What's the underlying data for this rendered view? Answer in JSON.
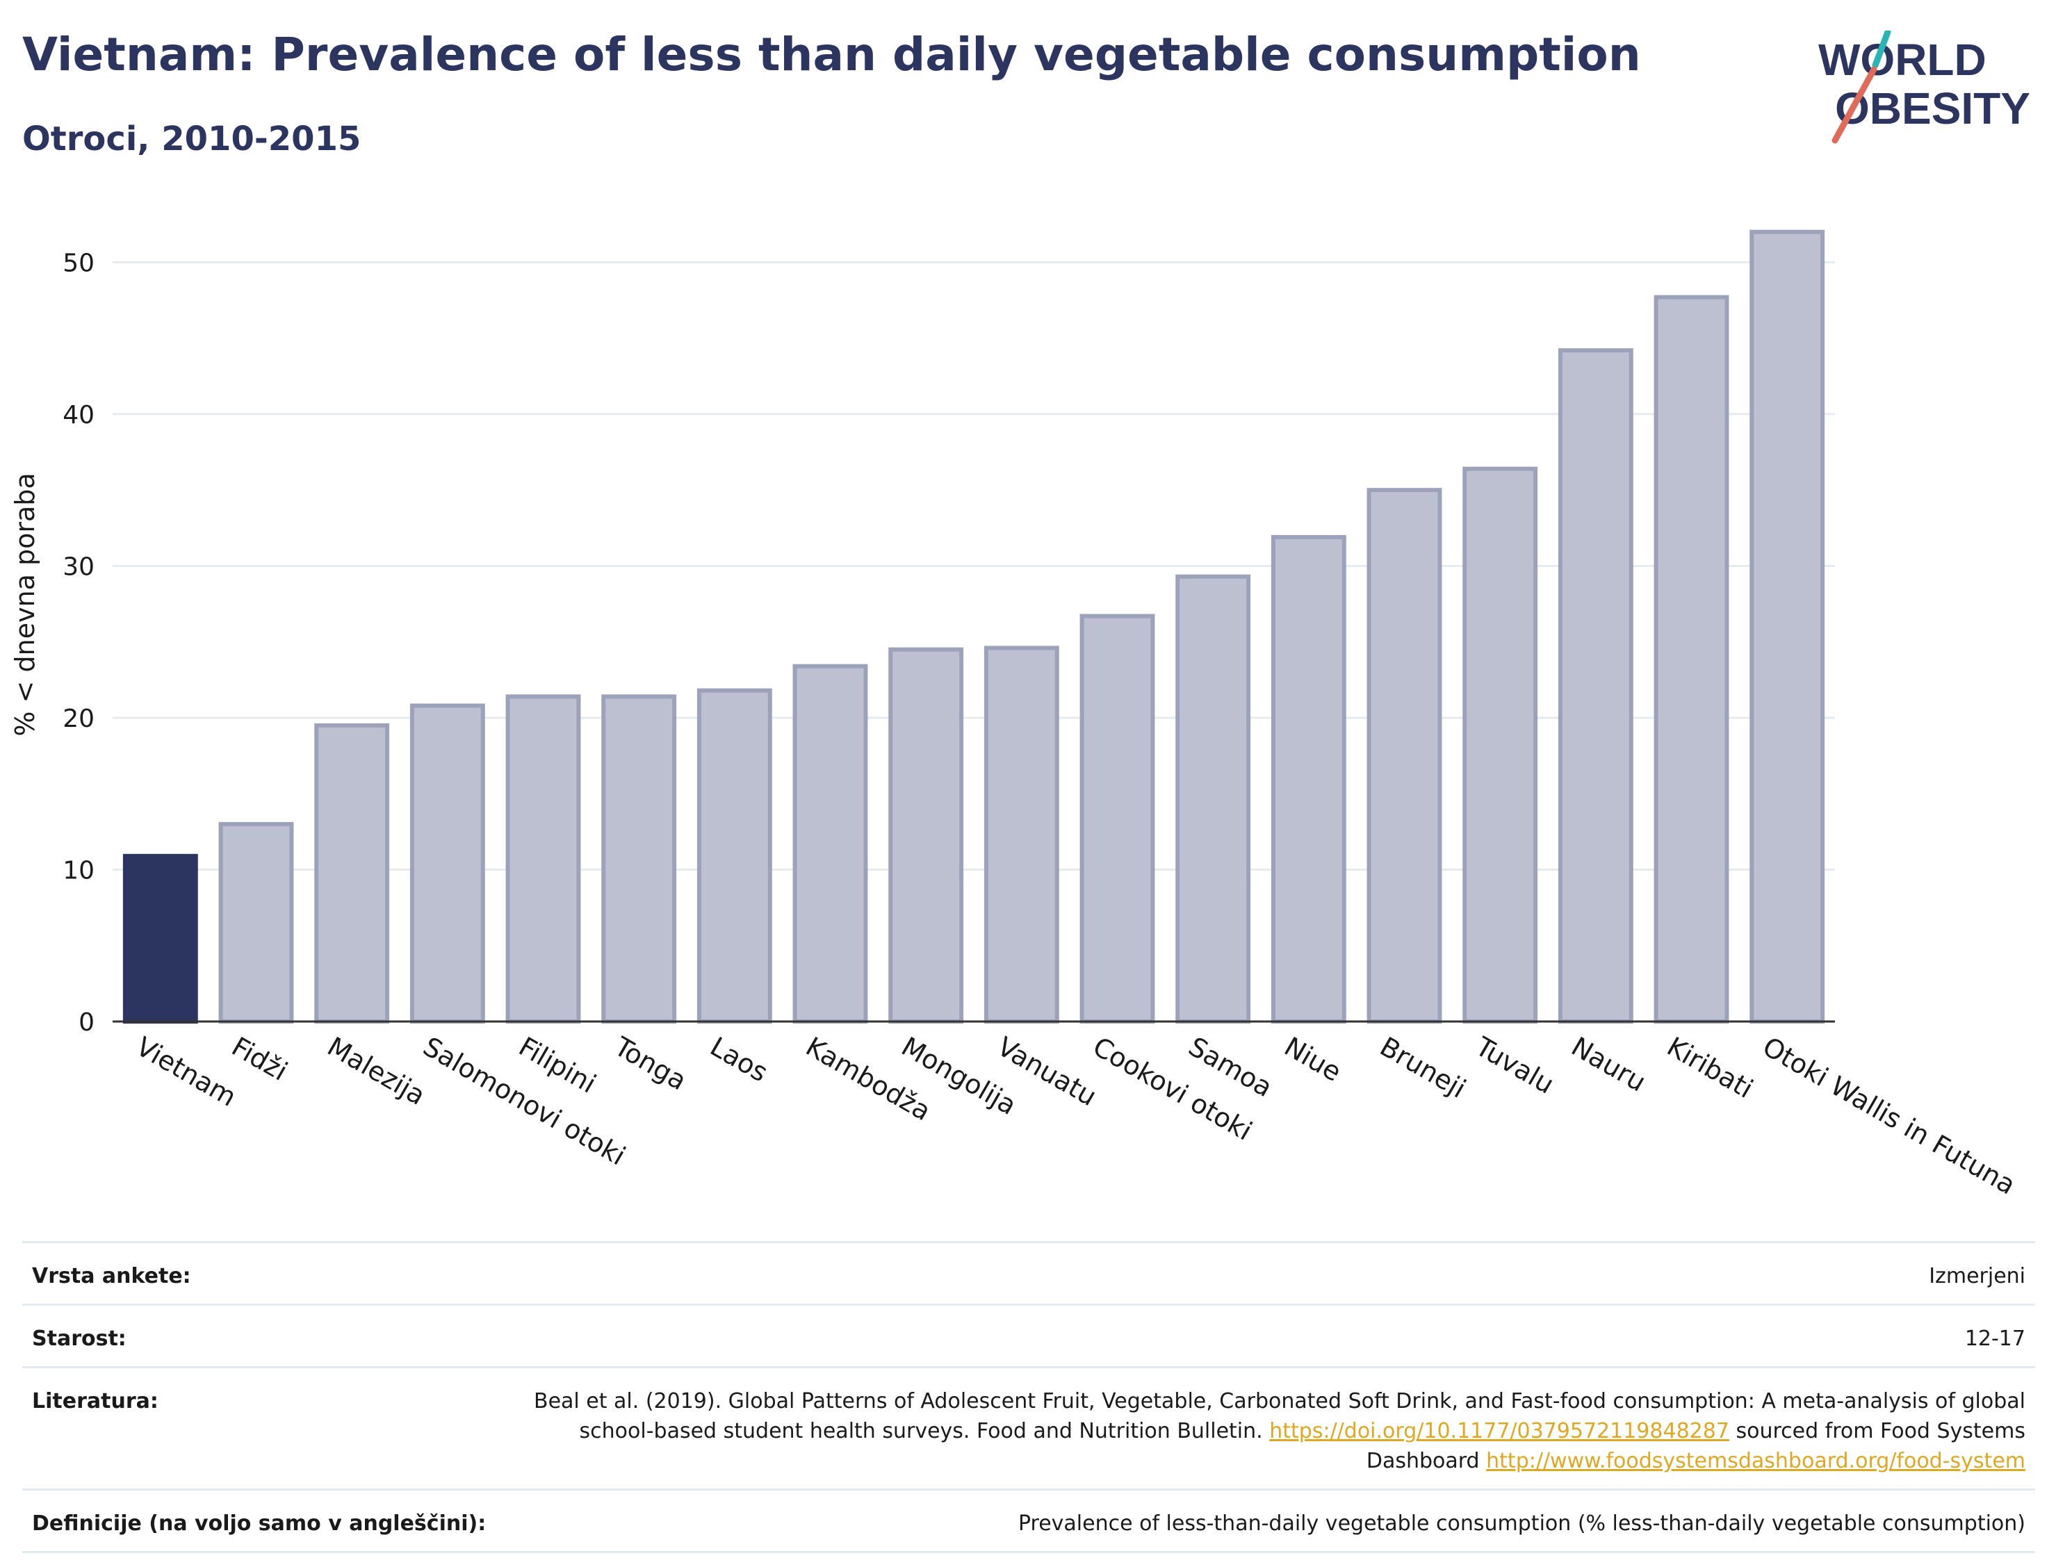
{
  "header": {
    "title": "Vietnam: Prevalence of less than daily vegetable consumption",
    "subtitle": "Otroci, 2010-2015",
    "logo_line1": "WORLD",
    "logo_line2": "OBESITY"
  },
  "chart_data": {
    "type": "bar",
    "title": "Vietnam: Prevalence of less than daily vegetable consumption",
    "subtitle": "Otroci, 2010-2015",
    "ylabel": "% < dnevna poraba",
    "xlabel": "",
    "ylim": [
      0,
      54
    ],
    "yticks": [
      0,
      10,
      20,
      30,
      40,
      50
    ],
    "grid": true,
    "highlight_category": "Vietnam",
    "colors": {
      "highlight": "#2b3560",
      "bar": "#bcc0d0",
      "bar_edge": "#9da2bb",
      "grid": "#e6ebf0"
    },
    "categories": [
      "Vietnam",
      "Fidži",
      "Malezija",
      "Salomonovi otoki",
      "Filipini",
      "Tonga",
      "Laos",
      "Kambodža",
      "Mongolija",
      "Vanuatu",
      "Cookovi otoki",
      "Samoa",
      "Niue",
      "Bruneji",
      "Tuvalu",
      "Nauru",
      "Kiribati",
      "Otoki Wallis in Futuna"
    ],
    "values": [
      10.9,
      13.0,
      19.5,
      20.8,
      21.4,
      21.4,
      21.8,
      23.4,
      24.5,
      24.6,
      26.7,
      29.3,
      31.9,
      35.0,
      36.4,
      44.2,
      47.7,
      52.0
    ]
  },
  "meta": {
    "survey_label": "Vrsta ankete:",
    "survey_value": "Izmerjeni",
    "age_label": "Starost:",
    "age_value": "12-17",
    "ref_label": "Literatura:",
    "ref_text": "Beal et al. (2019). Global Patterns of Adolescent Fruit, Vegetable, Carbonated Soft Drink, and Fast-food consumption: A meta-analysis of global school-based student health surveys. Food and Nutrition Bulletin.",
    "ref_link1": "https://doi.org/10.1177/0379572119848287",
    "ref_mid": "sourced from Food Systems Dashboard",
    "ref_link2": "http://www.foodsystemsdashboard.org/food-system",
    "def_label": "Definicije (na voljo samo v angleščini):",
    "def_value": "Prevalence of less-than-daily vegetable consumption (% less-than-daily vegetable consumption)"
  }
}
